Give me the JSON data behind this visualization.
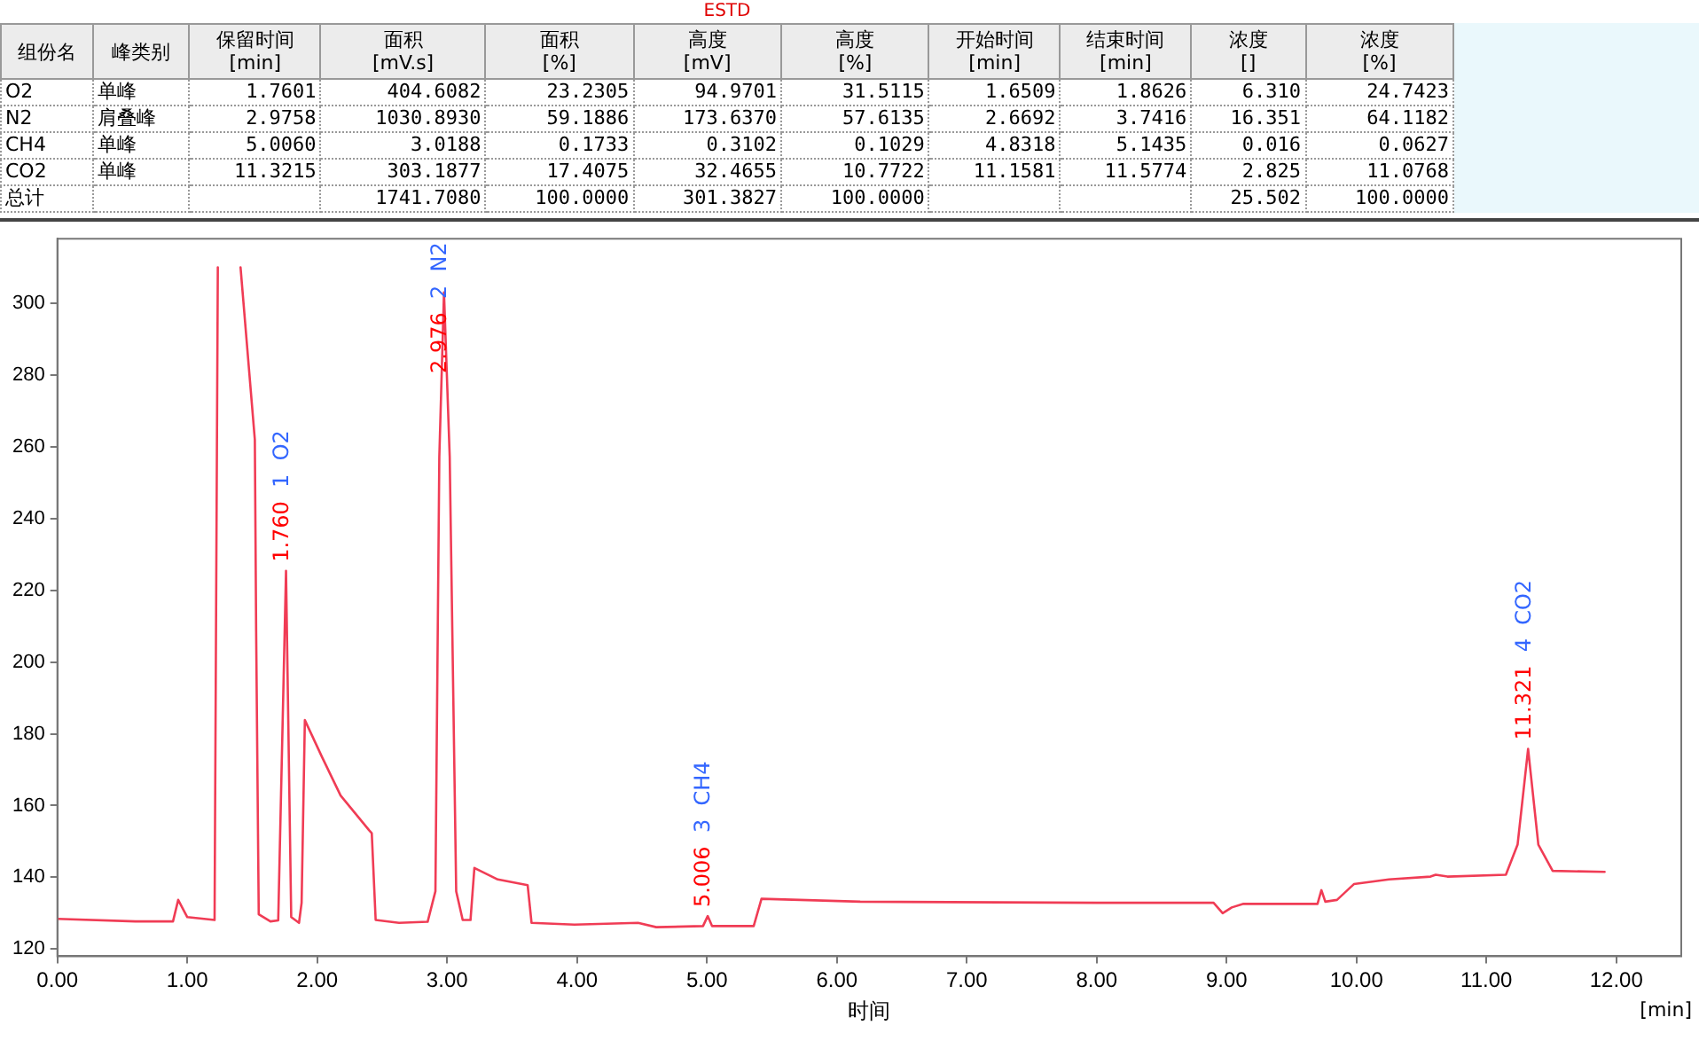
{
  "chart_data": {
    "type": "line",
    "title": "ESTD",
    "xlabel": "时间",
    "annotations": [
      "组份名\t峰类别\t保留时间\n[min]\t面积\n[mV.s]\t面积\n[%]\t高度\n[mV]\t高度\n[%]\t开始时间\n[min]\t结束时间\n[min]\t浓度\n[]\t浓度\n[%]",
      "O2\t单峰\t1.7601\t404.6082\t23.2305\t94.9701\t31.5115\t1.6509\t1.8626\t6.310\t24.7423",
      "N2\t肩叠峰\t2.9758\t1030.8930\t59.1886\t173.6370\t57.6135\t2.6692\t3.7416\t16.351\t64.1182",
      "CH4\t单峰\t5.0060\t3.0188\t0.1733\t0.3102\t0.1029\t4.8318\t5.1435\t0.016\t0.0627",
      "CO2\t单峰\t11.3215\t303.1877\t17.4075\t32.4655\t10.7722\t11.1581\t11.5774\t2.825\t11.0768",
      "总计\t\t\t1741.7080\t100.0000\t301.3827\t100.0000\t\t\t25.502\t100.0000",
      "[min]",
      {
        "text": "1.760  1  O2",
        "x": 1.76,
        "y": 225.4
      },
      {
        "text": "2.976  2  N2",
        "x": 2.976,
        "y": 303
      },
      {
        "text": "5.006  3  CH4",
        "x": 5.006,
        "y": 129.2
      },
      {
        "text": "11.321  4  CO2",
        "x": 11.321,
        "y": 175.8
      }
    ],
    "xlim": [
      0,
      12.5
    ],
    "ylim": [
      118,
      318
    ],
    "xticks": [
      {
        "value": 0,
        "label": "0.00"
      },
      {
        "value": 1,
        "label": "1.00"
      },
      {
        "value": 2,
        "label": "2.00"
      },
      {
        "value": 3,
        "label": "3.00"
      },
      {
        "value": 4,
        "label": "4.00"
      },
      {
        "value": 5,
        "label": "5.00"
      },
      {
        "value": 6,
        "label": "6.00"
      },
      {
        "value": 7,
        "label": "7.00"
      },
      {
        "value": 8,
        "label": "8.00"
      },
      {
        "value": 9,
        "label": "9.00"
      },
      {
        "value": 10,
        "label": "10.00"
      },
      {
        "value": 11,
        "label": "11.00"
      },
      {
        "value": 12,
        "label": "12.00"
      }
    ],
    "yticks": [
      120,
      140,
      160,
      180,
      200,
      220,
      240,
      260,
      280,
      300
    ],
    "grid": false,
    "legend": false,
    "marker": "none",
    "line_style": "solid",
    "series": [
      {
        "color": "#f03c55",
        "x": [
          0,
          0.6,
          0.89,
          0.93,
          1.0,
          1.21,
          1.235,
          1.3,
          1.41,
          1.52,
          1.53,
          1.55,
          1.64,
          1.7,
          1.76,
          1.8,
          1.86,
          1.88,
          1.905,
          2.04,
          2.18,
          2.4,
          2.42,
          2.45,
          2.63,
          2.85,
          2.91,
          2.94,
          2.976,
          3.02,
          3.07,
          3.12,
          3.18,
          3.21,
          3.39,
          3.62,
          3.65,
          3.98,
          4.47,
          4.61,
          4.97,
          5.006,
          5.04,
          5.36,
          5.42,
          6.18,
          8.0,
          8.9,
          8.97,
          9.04,
          9.13,
          9.7,
          9.73,
          9.76,
          9.85,
          9.98,
          10.25,
          10.57,
          10.61,
          10.7,
          11.15,
          11.24,
          11.321,
          11.4,
          11.51,
          11.91
        ],
        "values": [
          128.4,
          127.7,
          127.7,
          133.7,
          128.9,
          128.1,
          310,
          null,
          310,
          262,
          208.8,
          129.7,
          127.7,
          128,
          225.4,
          128.9,
          127.3,
          132.9,
          183.8,
          173.3,
          162.8,
          153.1,
          152.3,
          128.1,
          127.3,
          127.6,
          136.1,
          257.2,
          303,
          257.2,
          136.1,
          128.1,
          128.1,
          142.6,
          139.4,
          137.8,
          127.3,
          126.8,
          127.3,
          126.1,
          126.4,
          129.2,
          126.4,
          126.4,
          134,
          133.2,
          132.9,
          132.9,
          130,
          131.6,
          132.6,
          132.6,
          136.4,
          133.2,
          133.7,
          138.1,
          139.4,
          140.2,
          140.7,
          140.2,
          140.7,
          149.1,
          175.8,
          149.1,
          141.8,
          141.5
        ]
      }
    ]
  }
}
